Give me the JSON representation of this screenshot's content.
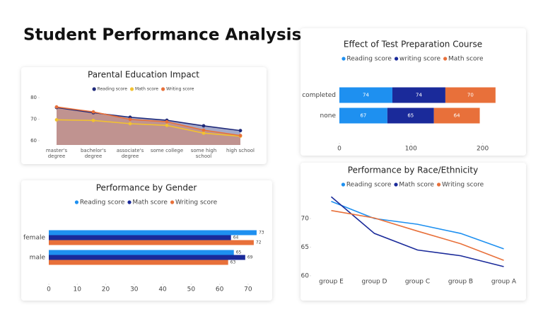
{
  "title": "Student Performance Analysis",
  "chart_data": [
    {
      "type": "area",
      "title": "Parental Education Impact",
      "categories": [
        "master's degree",
        "bachelor's degree",
        "associate's degree",
        "some college",
        "some high school",
        "high school"
      ],
      "series": [
        {
          "name": "Reading score",
          "color": "#1f2a7a",
          "values": [
            75.4,
            73.0,
            70.9,
            69.5,
            66.9,
            64.7
          ]
        },
        {
          "name": "Math score",
          "color": "#f2c230",
          "values": [
            69.7,
            69.4,
            67.9,
            67.1,
            63.5,
            62.1
          ]
        },
        {
          "name": "Writing score",
          "color": "#e8703a",
          "values": [
            75.7,
            73.4,
            69.9,
            68.8,
            64.9,
            62.4
          ]
        }
      ],
      "ylim": [
        58,
        82
      ],
      "yticks": [
        60,
        70,
        80
      ]
    },
    {
      "type": "hbar",
      "title": "Performance by Gender",
      "categories": [
        "female",
        "male"
      ],
      "series": [
        {
          "name": "Reading score",
          "color": "#1e90f0",
          "values": [
            73,
            65
          ]
        },
        {
          "name": "Math score",
          "color": "#1a2a9a",
          "values": [
            64,
            69
          ]
        },
        {
          "name": "Writing score",
          "color": "#e8703a",
          "values": [
            72,
            63
          ]
        }
      ],
      "xlim": [
        0,
        75
      ],
      "xticks": [
        0,
        10,
        20,
        30,
        40,
        50,
        60,
        70
      ]
    },
    {
      "type": "stacked_hbar",
      "title": "Effect of Test Preparation Course",
      "categories": [
        "completed",
        "none"
      ],
      "series": [
        {
          "name": "Reading score",
          "color": "#1e90f0",
          "values": [
            74,
            67
          ]
        },
        {
          "name": "writing score",
          "color": "#1a2a9a",
          "values": [
            74,
            65
          ]
        },
        {
          "name": "Math score",
          "color": "#e8703a",
          "values": [
            70,
            64
          ]
        }
      ],
      "xlim": [
        0,
        230
      ],
      "xticks": [
        0,
        100,
        200
      ]
    },
    {
      "type": "line",
      "title": "Performance by Race/Ethnicity",
      "categories": [
        "group E",
        "group D",
        "group C",
        "group B",
        "group A"
      ],
      "series": [
        {
          "name": "Reading score",
          "color": "#1e90f0",
          "values": [
            73.0,
            70.0,
            69.0,
            67.4,
            64.7
          ]
        },
        {
          "name": "Math score",
          "color": "#1a2a9a",
          "values": [
            73.8,
            67.4,
            64.5,
            63.5,
            61.6
          ]
        },
        {
          "name": "Writing score",
          "color": "#e8703a",
          "values": [
            71.4,
            70.1,
            67.8,
            65.6,
            62.7
          ]
        }
      ],
      "ylim": [
        59,
        76
      ],
      "yticks": [
        60,
        65,
        70
      ]
    }
  ]
}
